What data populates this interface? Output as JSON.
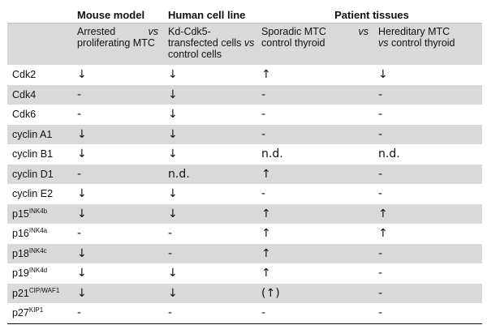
{
  "header": {
    "group1": "Mouse model",
    "group2": "Human cell line",
    "group3": "Patient tissues",
    "sub1_a": "Arrested",
    "sub1_vs": "vs",
    "sub1_b": "proliferating MTC",
    "sub2_a": "Kd-Cdk5-transfected cells",
    "sub2_vs": "vs",
    "sub2_b": "control cells",
    "sub3_a": "Sporadic MTC",
    "sub3_vs": "vs",
    "sub3_b": "control thyroid",
    "sub4_a": "Hereditary MTC",
    "sub4_vs": "vs",
    "sub4_b": "control thyroid"
  },
  "rows": [
    {
      "name": "Cdk2",
      "sup": "",
      "mouse": "↓",
      "cell": "↓",
      "sporadic": "↑",
      "hereditary": "↓"
    },
    {
      "name": "Cdk4",
      "sup": "",
      "mouse": "-",
      "cell": "↓",
      "sporadic": "-",
      "hereditary": "-"
    },
    {
      "name": "Cdk6",
      "sup": "",
      "mouse": "-",
      "cell": "↓",
      "sporadic": "-",
      "hereditary": "-"
    },
    {
      "name": "cyclin A1",
      "sup": "",
      "mouse": "↓",
      "cell": "↓",
      "sporadic": "-",
      "hereditary": "-"
    },
    {
      "name": "cyclin B1",
      "sup": "",
      "mouse": "↓",
      "cell": "↓",
      "sporadic": "n.d.",
      "hereditary": "n.d."
    },
    {
      "name": "cyclin D1",
      "sup": "",
      "mouse": "-",
      "cell": "n.d.",
      "sporadic": "↑",
      "hereditary": "-"
    },
    {
      "name": "cyclin E2",
      "sup": "",
      "mouse": "↓",
      "cell": "↓",
      "sporadic": "-",
      "hereditary": "-"
    },
    {
      "name": "p15",
      "sup": "INK4b",
      "mouse": "↓",
      "cell": "↓",
      "sporadic": "↑",
      "hereditary": "↑"
    },
    {
      "name": "p16",
      "sup": "INK4a",
      "mouse": "-",
      "cell": "-",
      "sporadic": "↑",
      "hereditary": "↑"
    },
    {
      "name": "p18",
      "sup": "INK4c",
      "mouse": "↓",
      "cell": "-",
      "sporadic": "↑",
      "hereditary": "-"
    },
    {
      "name": "p19",
      "sup": "INK4d",
      "mouse": "↓",
      "cell": "↓",
      "sporadic": "↑",
      "hereditary": "-"
    },
    {
      "name": "p21",
      "sup": "CIP/WAF1",
      "mouse": "↓",
      "cell": "↓",
      "sporadic": "(↑)",
      "hereditary": "-"
    },
    {
      "name": "p27",
      "sup": "KIP1",
      "mouse": "-",
      "cell": "-",
      "sporadic": "-",
      "hereditary": "-"
    }
  ]
}
